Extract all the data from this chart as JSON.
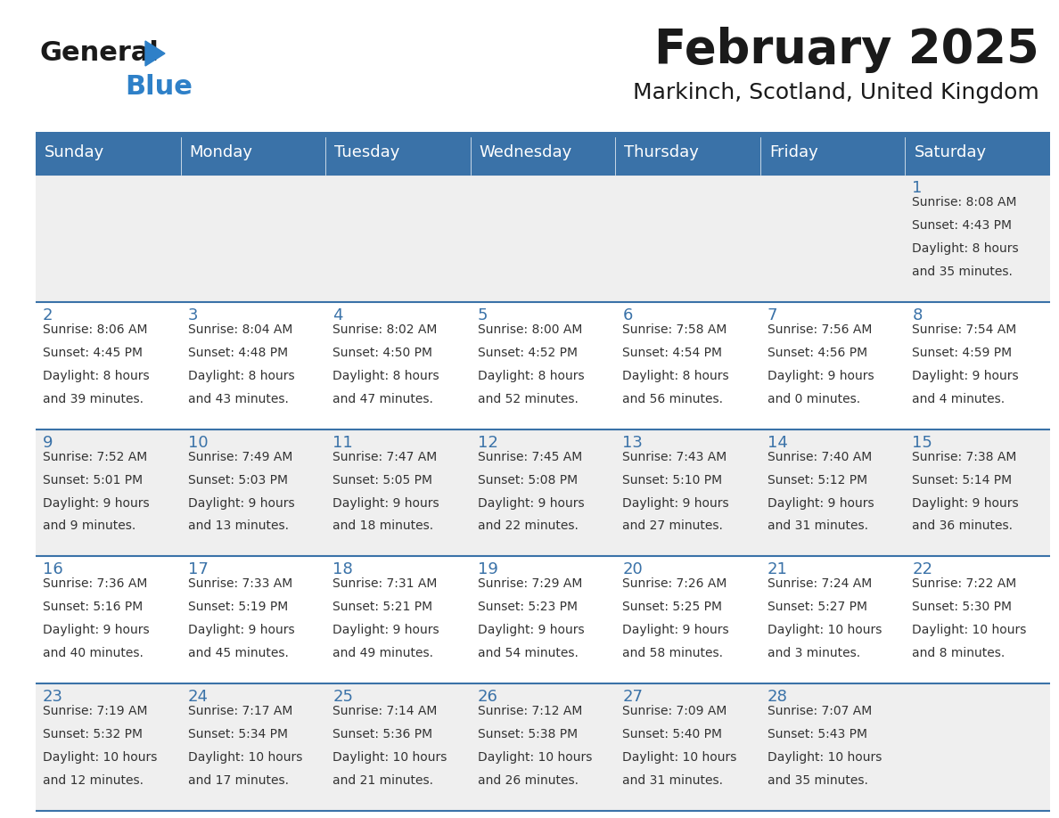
{
  "title": "February 2025",
  "subtitle": "Markinch, Scotland, United Kingdom",
  "days_of_week": [
    "Sunday",
    "Monday",
    "Tuesday",
    "Wednesday",
    "Thursday",
    "Friday",
    "Saturday"
  ],
  "header_bg": "#3a72a8",
  "header_text_color": "#ffffff",
  "odd_row_bg": "#efefef",
  "even_row_bg": "#ffffff",
  "border_color": "#3a72a8",
  "day_number_color": "#3a72a8",
  "cell_text_color": "#333333",
  "logo_general_color": "#1a1a1a",
  "logo_blue_color": "#2e80c8",
  "calendar": [
    [
      null,
      null,
      null,
      null,
      null,
      null,
      {
        "day": 1,
        "sunrise": "8:08 AM",
        "sunset": "4:43 PM",
        "daylight": "8 hours and 35 minutes."
      }
    ],
    [
      {
        "day": 2,
        "sunrise": "8:06 AM",
        "sunset": "4:45 PM",
        "daylight": "8 hours and 39 minutes."
      },
      {
        "day": 3,
        "sunrise": "8:04 AM",
        "sunset": "4:48 PM",
        "daylight": "8 hours and 43 minutes."
      },
      {
        "day": 4,
        "sunrise": "8:02 AM",
        "sunset": "4:50 PM",
        "daylight": "8 hours and 47 minutes."
      },
      {
        "day": 5,
        "sunrise": "8:00 AM",
        "sunset": "4:52 PM",
        "daylight": "8 hours and 52 minutes."
      },
      {
        "day": 6,
        "sunrise": "7:58 AM",
        "sunset": "4:54 PM",
        "daylight": "8 hours and 56 minutes."
      },
      {
        "day": 7,
        "sunrise": "7:56 AM",
        "sunset": "4:56 PM",
        "daylight": "9 hours and 0 minutes."
      },
      {
        "day": 8,
        "sunrise": "7:54 AM",
        "sunset": "4:59 PM",
        "daylight": "9 hours and 4 minutes."
      }
    ],
    [
      {
        "day": 9,
        "sunrise": "7:52 AM",
        "sunset": "5:01 PM",
        "daylight": "9 hours and 9 minutes."
      },
      {
        "day": 10,
        "sunrise": "7:49 AM",
        "sunset": "5:03 PM",
        "daylight": "9 hours and 13 minutes."
      },
      {
        "day": 11,
        "sunrise": "7:47 AM",
        "sunset": "5:05 PM",
        "daylight": "9 hours and 18 minutes."
      },
      {
        "day": 12,
        "sunrise": "7:45 AM",
        "sunset": "5:08 PM",
        "daylight": "9 hours and 22 minutes."
      },
      {
        "day": 13,
        "sunrise": "7:43 AM",
        "sunset": "5:10 PM",
        "daylight": "9 hours and 27 minutes."
      },
      {
        "day": 14,
        "sunrise": "7:40 AM",
        "sunset": "5:12 PM",
        "daylight": "9 hours and 31 minutes."
      },
      {
        "day": 15,
        "sunrise": "7:38 AM",
        "sunset": "5:14 PM",
        "daylight": "9 hours and 36 minutes."
      }
    ],
    [
      {
        "day": 16,
        "sunrise": "7:36 AM",
        "sunset": "5:16 PM",
        "daylight": "9 hours and 40 minutes."
      },
      {
        "day": 17,
        "sunrise": "7:33 AM",
        "sunset": "5:19 PM",
        "daylight": "9 hours and 45 minutes."
      },
      {
        "day": 18,
        "sunrise": "7:31 AM",
        "sunset": "5:21 PM",
        "daylight": "9 hours and 49 minutes."
      },
      {
        "day": 19,
        "sunrise": "7:29 AM",
        "sunset": "5:23 PM",
        "daylight": "9 hours and 54 minutes."
      },
      {
        "day": 20,
        "sunrise": "7:26 AM",
        "sunset": "5:25 PM",
        "daylight": "9 hours and 58 minutes."
      },
      {
        "day": 21,
        "sunrise": "7:24 AM",
        "sunset": "5:27 PM",
        "daylight": "10 hours and 3 minutes."
      },
      {
        "day": 22,
        "sunrise": "7:22 AM",
        "sunset": "5:30 PM",
        "daylight": "10 hours and 8 minutes."
      }
    ],
    [
      {
        "day": 23,
        "sunrise": "7:19 AM",
        "sunset": "5:32 PM",
        "daylight": "10 hours and 12 minutes."
      },
      {
        "day": 24,
        "sunrise": "7:17 AM",
        "sunset": "5:34 PM",
        "daylight": "10 hours and 17 minutes."
      },
      {
        "day": 25,
        "sunrise": "7:14 AM",
        "sunset": "5:36 PM",
        "daylight": "10 hours and 21 minutes."
      },
      {
        "day": 26,
        "sunrise": "7:12 AM",
        "sunset": "5:38 PM",
        "daylight": "10 hours and 26 minutes."
      },
      {
        "day": 27,
        "sunrise": "7:09 AM",
        "sunset": "5:40 PM",
        "daylight": "10 hours and 31 minutes."
      },
      {
        "day": 28,
        "sunrise": "7:07 AM",
        "sunset": "5:43 PM",
        "daylight": "10 hours and 35 minutes."
      },
      null
    ]
  ]
}
